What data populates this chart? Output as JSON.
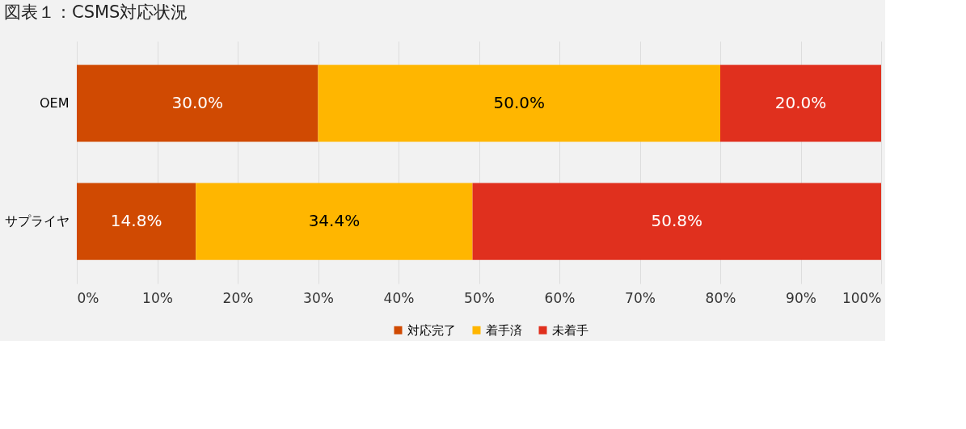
{
  "chart_data": {
    "type": "bar",
    "title": "図表１：CSMS対応状況",
    "orientation": "horizontal",
    "stacked": true,
    "categories": [
      "OEM",
      "サプライヤ"
    ],
    "series": [
      {
        "name": "対応完了",
        "color": "#d04a02",
        "values": [
          30.0,
          14.8
        ],
        "value_labels": [
          "30.0%",
          "14.8%"
        ]
      },
      {
        "name": "着手済",
        "color": "#ffb600",
        "values": [
          50.0,
          34.4
        ],
        "value_labels": [
          "50.0%",
          "34.4%"
        ]
      },
      {
        "name": "未着手",
        "color": "#e0301e",
        "values": [
          20.0,
          50.8
        ],
        "value_labels": [
          "20.0%",
          "50.8%"
        ]
      }
    ],
    "xlim": [
      0,
      100
    ],
    "xticks": [
      {
        "value": 0,
        "label": "0%"
      },
      {
        "value": 10,
        "label": "10%"
      },
      {
        "value": 20,
        "label": "20%"
      },
      {
        "value": 30,
        "label": "30%"
      },
      {
        "value": 40,
        "label": "40%"
      },
      {
        "value": 50,
        "label": "50%"
      },
      {
        "value": 60,
        "label": "60%"
      },
      {
        "value": 70,
        "label": "70%"
      },
      {
        "value": 80,
        "label": "80%"
      },
      {
        "value": 90,
        "label": "90%"
      },
      {
        "value": 100,
        "label": "100%"
      }
    ],
    "grid": "x",
    "legend": "bottom"
  }
}
